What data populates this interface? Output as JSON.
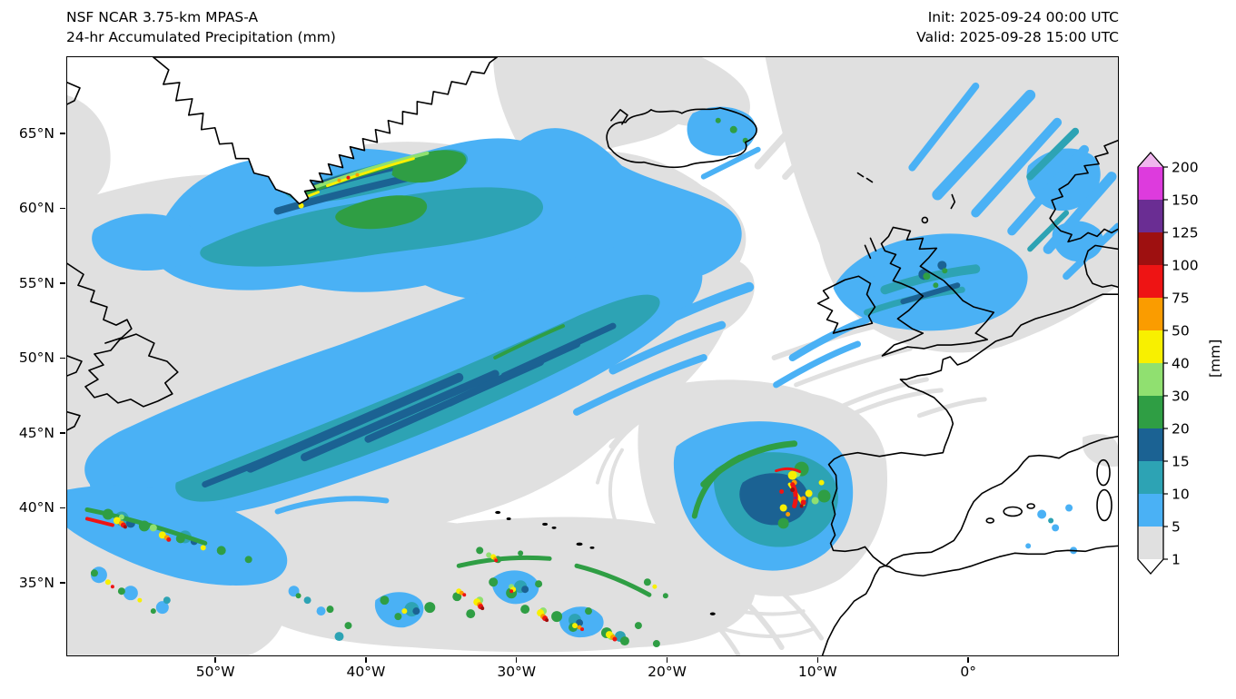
{
  "header": {
    "model": "NSF NCAR 3.75-km MPAS-A",
    "product": "24-hr Accumulated Precipitation (mm)",
    "init": "Init: 2025-09-24 00:00 UTC",
    "valid": "Valid: 2025-09-28 15:00 UTC"
  },
  "chart_data": {
    "type": "heatmap",
    "subtype": "precipitation-forecast-map",
    "title": "24-hr Accumulated Precipitation (mm)",
    "model": "NSF NCAR 3.75-km MPAS-A",
    "init_time": "2025-09-24 00:00 UTC",
    "valid_time": "2025-09-28 15:00 UTC",
    "units": "mm",
    "region": "North Atlantic / western Europe",
    "x_axis": {
      "ticks": [
        {
          "label": "50°W",
          "value": -50
        },
        {
          "label": "40°W",
          "value": -40
        },
        {
          "label": "30°W",
          "value": -30
        },
        {
          "label": "20°W",
          "value": -20
        },
        {
          "label": "10°W",
          "value": -10
        },
        {
          "label": "0°",
          "value": 0
        }
      ]
    },
    "y_axis": {
      "ticks": [
        {
          "label": "65°N",
          "value": 65
        },
        {
          "label": "60°N",
          "value": 60
        },
        {
          "label": "55°N",
          "value": 55
        },
        {
          "label": "50°N",
          "value": 50
        },
        {
          "label": "45°N",
          "value": 45
        },
        {
          "label": "40°N",
          "value": 40
        },
        {
          "label": "35°N",
          "value": 35
        }
      ]
    },
    "extent": {
      "lon_min": -59.9,
      "lon_max": 10.0,
      "lat_min": 30.1,
      "lat_max": 70.2
    },
    "grid": false,
    "colorbar": {
      "label": "[mm]",
      "orientation": "vertical-right",
      "extend": "both",
      "levels": [
        1,
        5,
        10,
        15,
        20,
        30,
        40,
        50,
        75,
        100,
        125,
        150,
        200
      ],
      "segment_colors": [
        "#e0e0e0",
        "#4ab1f5",
        "#2da3b4",
        "#1b6293",
        "#2f9e44",
        "#90e070",
        "#f8f000",
        "#fa9c00",
        "#ee1414",
        "#9e1010",
        "#6a2d93",
        "#dd3bdd"
      ],
      "under_color": "#ffffff",
      "over_color": "#f0b6ee"
    },
    "styles": {
      "coastline_color": "#000000",
      "background": "#ffffff"
    },
    "features": [
      "Broad SW-NE swath of 5-20 mm stretching across the central North Atlantic from ~40°N 55°W toward Iceland",
      "Heavy precipitation band (20-50 mm, locally higher) hugging the southeast coast of Greenland",
      "Convective cluster with 40-125 mm cores west of the Iberian Peninsula near 42°N 12°W",
      "Scattered convective cells (40-125 mm) in the subtropics near and south of the Azores (33-38°N, 20-35°W)",
      "Streak of convective cells with 75-125 mm cores exiting the west edge of the map near 40°N",
      "Moderate rain (5-20 mm) over Scotland and the northern North Sea extending toward Norway",
      "Light rain streaks over the Norwegian Sea in the upper-right of the domain",
      "Widespread light totals (1-5 mm, gray shading) over much of the basin"
    ]
  }
}
